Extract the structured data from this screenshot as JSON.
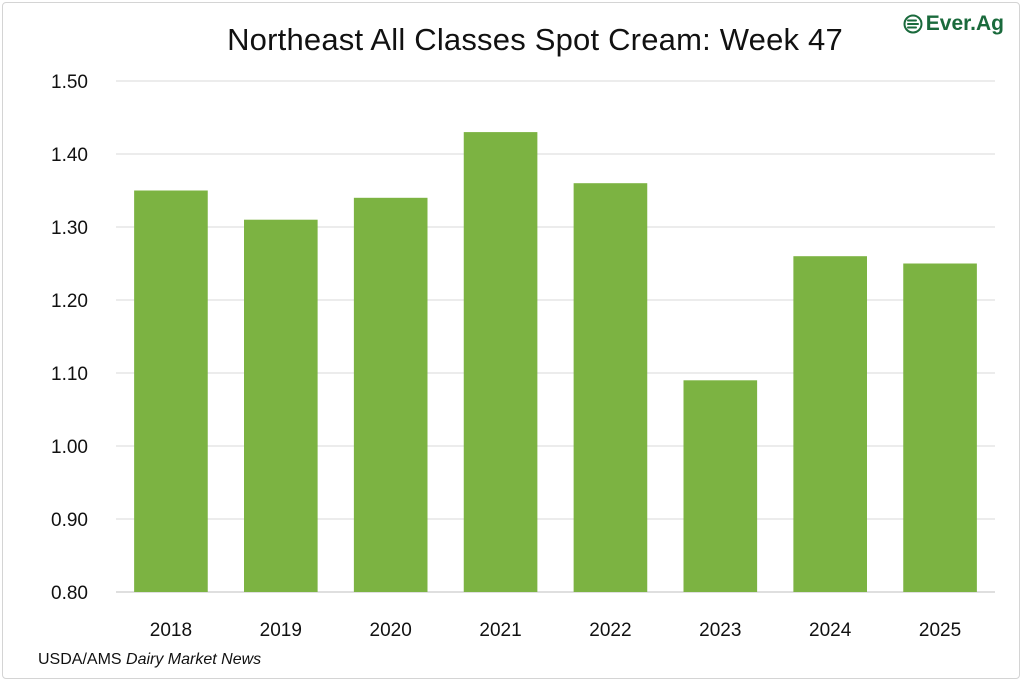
{
  "title": "Northeast All Classes Spot Cream: Week 47",
  "logo": {
    "text": "Ever.Ag",
    "icon": "ever-ag-logo-icon"
  },
  "source": {
    "prefix": "USDA/AMS ",
    "italic": "Dairy Market News"
  },
  "colors": {
    "bar": "#7cb342",
    "grid": "#d9d9d9",
    "text": "#111111",
    "logo": "#1a6a3c"
  },
  "chart_data": {
    "type": "bar",
    "title": "Northeast All Classes Spot Cream: Week 47",
    "xlabel": "",
    "ylabel": "",
    "categories": [
      "2018",
      "2019",
      "2020",
      "2021",
      "2022",
      "2023",
      "2024",
      "2025"
    ],
    "values": [
      1.35,
      1.31,
      1.34,
      1.43,
      1.36,
      1.09,
      1.26,
      1.25
    ],
    "ylim": [
      0.8,
      1.5
    ],
    "yticks": [
      "0.80",
      "0.90",
      "1.00",
      "1.10",
      "1.20",
      "1.30",
      "1.40",
      "1.50"
    ],
    "grid": true,
    "legend": "none"
  }
}
